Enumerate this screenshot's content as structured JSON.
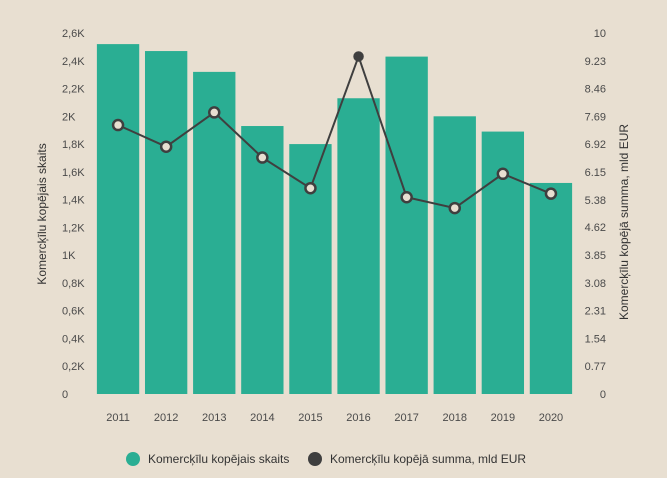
{
  "chart_data": {
    "type": "bar",
    "title": "",
    "categories": [
      "2011",
      "2012",
      "2013",
      "2014",
      "2015",
      "2016",
      "2017",
      "2018",
      "2019",
      "2020"
    ],
    "series": [
      {
        "name": "Komercķīlu kopējais skaits",
        "type": "bar",
        "axis": "left",
        "color": "#2aae93",
        "values": [
          2520,
          2470,
          2320,
          1930,
          1800,
          2130,
          2430,
          2000,
          1890,
          1520
        ]
      },
      {
        "name": "Komercķīlu kopējā summa, mld EUR",
        "type": "line",
        "axis": "right",
        "color": "#3f3f3f",
        "values": [
          7.45,
          6.85,
          7.8,
          6.55,
          5.7,
          9.35,
          5.45,
          5.15,
          6.1,
          5.55
        ]
      }
    ],
    "left_axis": {
      "label": "Komercķīlu kopējais skaits",
      "ylim": [
        0,
        2600
      ],
      "ticks": [
        0,
        200,
        400,
        600,
        800,
        1000,
        1200,
        1400,
        1600,
        1800,
        2000,
        2200,
        2400,
        2600
      ],
      "tick_labels": [
        "0",
        "0,2K",
        "0,4K",
        "0,6K",
        "0,8K",
        "1K",
        "1,2K",
        "1,4K",
        "1,6K",
        "1,8K",
        "2K",
        "2,2K",
        "2,4K",
        "2,6K"
      ]
    },
    "right_axis": {
      "label": "Komercķīlu kopējā summa, mld EUR",
      "ylim": [
        0,
        10
      ],
      "ticks": [
        0,
        0.77,
        1.54,
        2.31,
        3.08,
        3.85,
        4.62,
        5.38,
        6.15,
        6.92,
        7.69,
        8.46,
        9.23,
        10
      ],
      "tick_labels": [
        "0",
        "0.77",
        "1.54",
        "2.31",
        "3.08",
        "3.85",
        "4.62",
        "5.38",
        "6.15",
        "6.92",
        "7.69",
        "8.46",
        "9.23",
        "10"
      ]
    },
    "grid": false,
    "legend_position": "bottom"
  },
  "colors": {
    "background": "#e8dfd1",
    "bar": "#2aae93",
    "line": "#3f3f3f",
    "marker_fill": "#e8dfd1"
  }
}
